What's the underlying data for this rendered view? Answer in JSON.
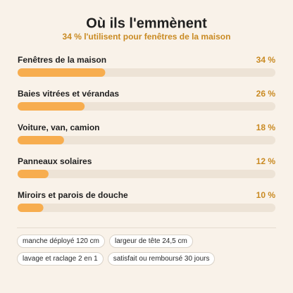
{
  "chart_data": {
    "type": "bar",
    "orientation": "horizontal",
    "title": "Où ils l'emmènent",
    "subtitle": "34 % l'utilisent pour fenêtres de la maison",
    "categories": [
      "Fenêtres de la maison",
      "Baies vitrées et vérandas",
      "Voiture, van, camion",
      "Panneaux solaires",
      "Miroirs et parois de douche"
    ],
    "values": [
      34,
      26,
      18,
      12,
      10
    ],
    "value_labels": [
      "34 %",
      "26 %",
      "18 %",
      "12 %",
      "10 %"
    ],
    "color": "#f7ad4f",
    "xlim": [
      0,
      100
    ]
  },
  "tags": [
    "manche déployé 120 cm",
    "largeur de tête 24,5 cm",
    "lavage et raclage 2 en 1",
    "satisfait ou remboursé 30 jours"
  ]
}
